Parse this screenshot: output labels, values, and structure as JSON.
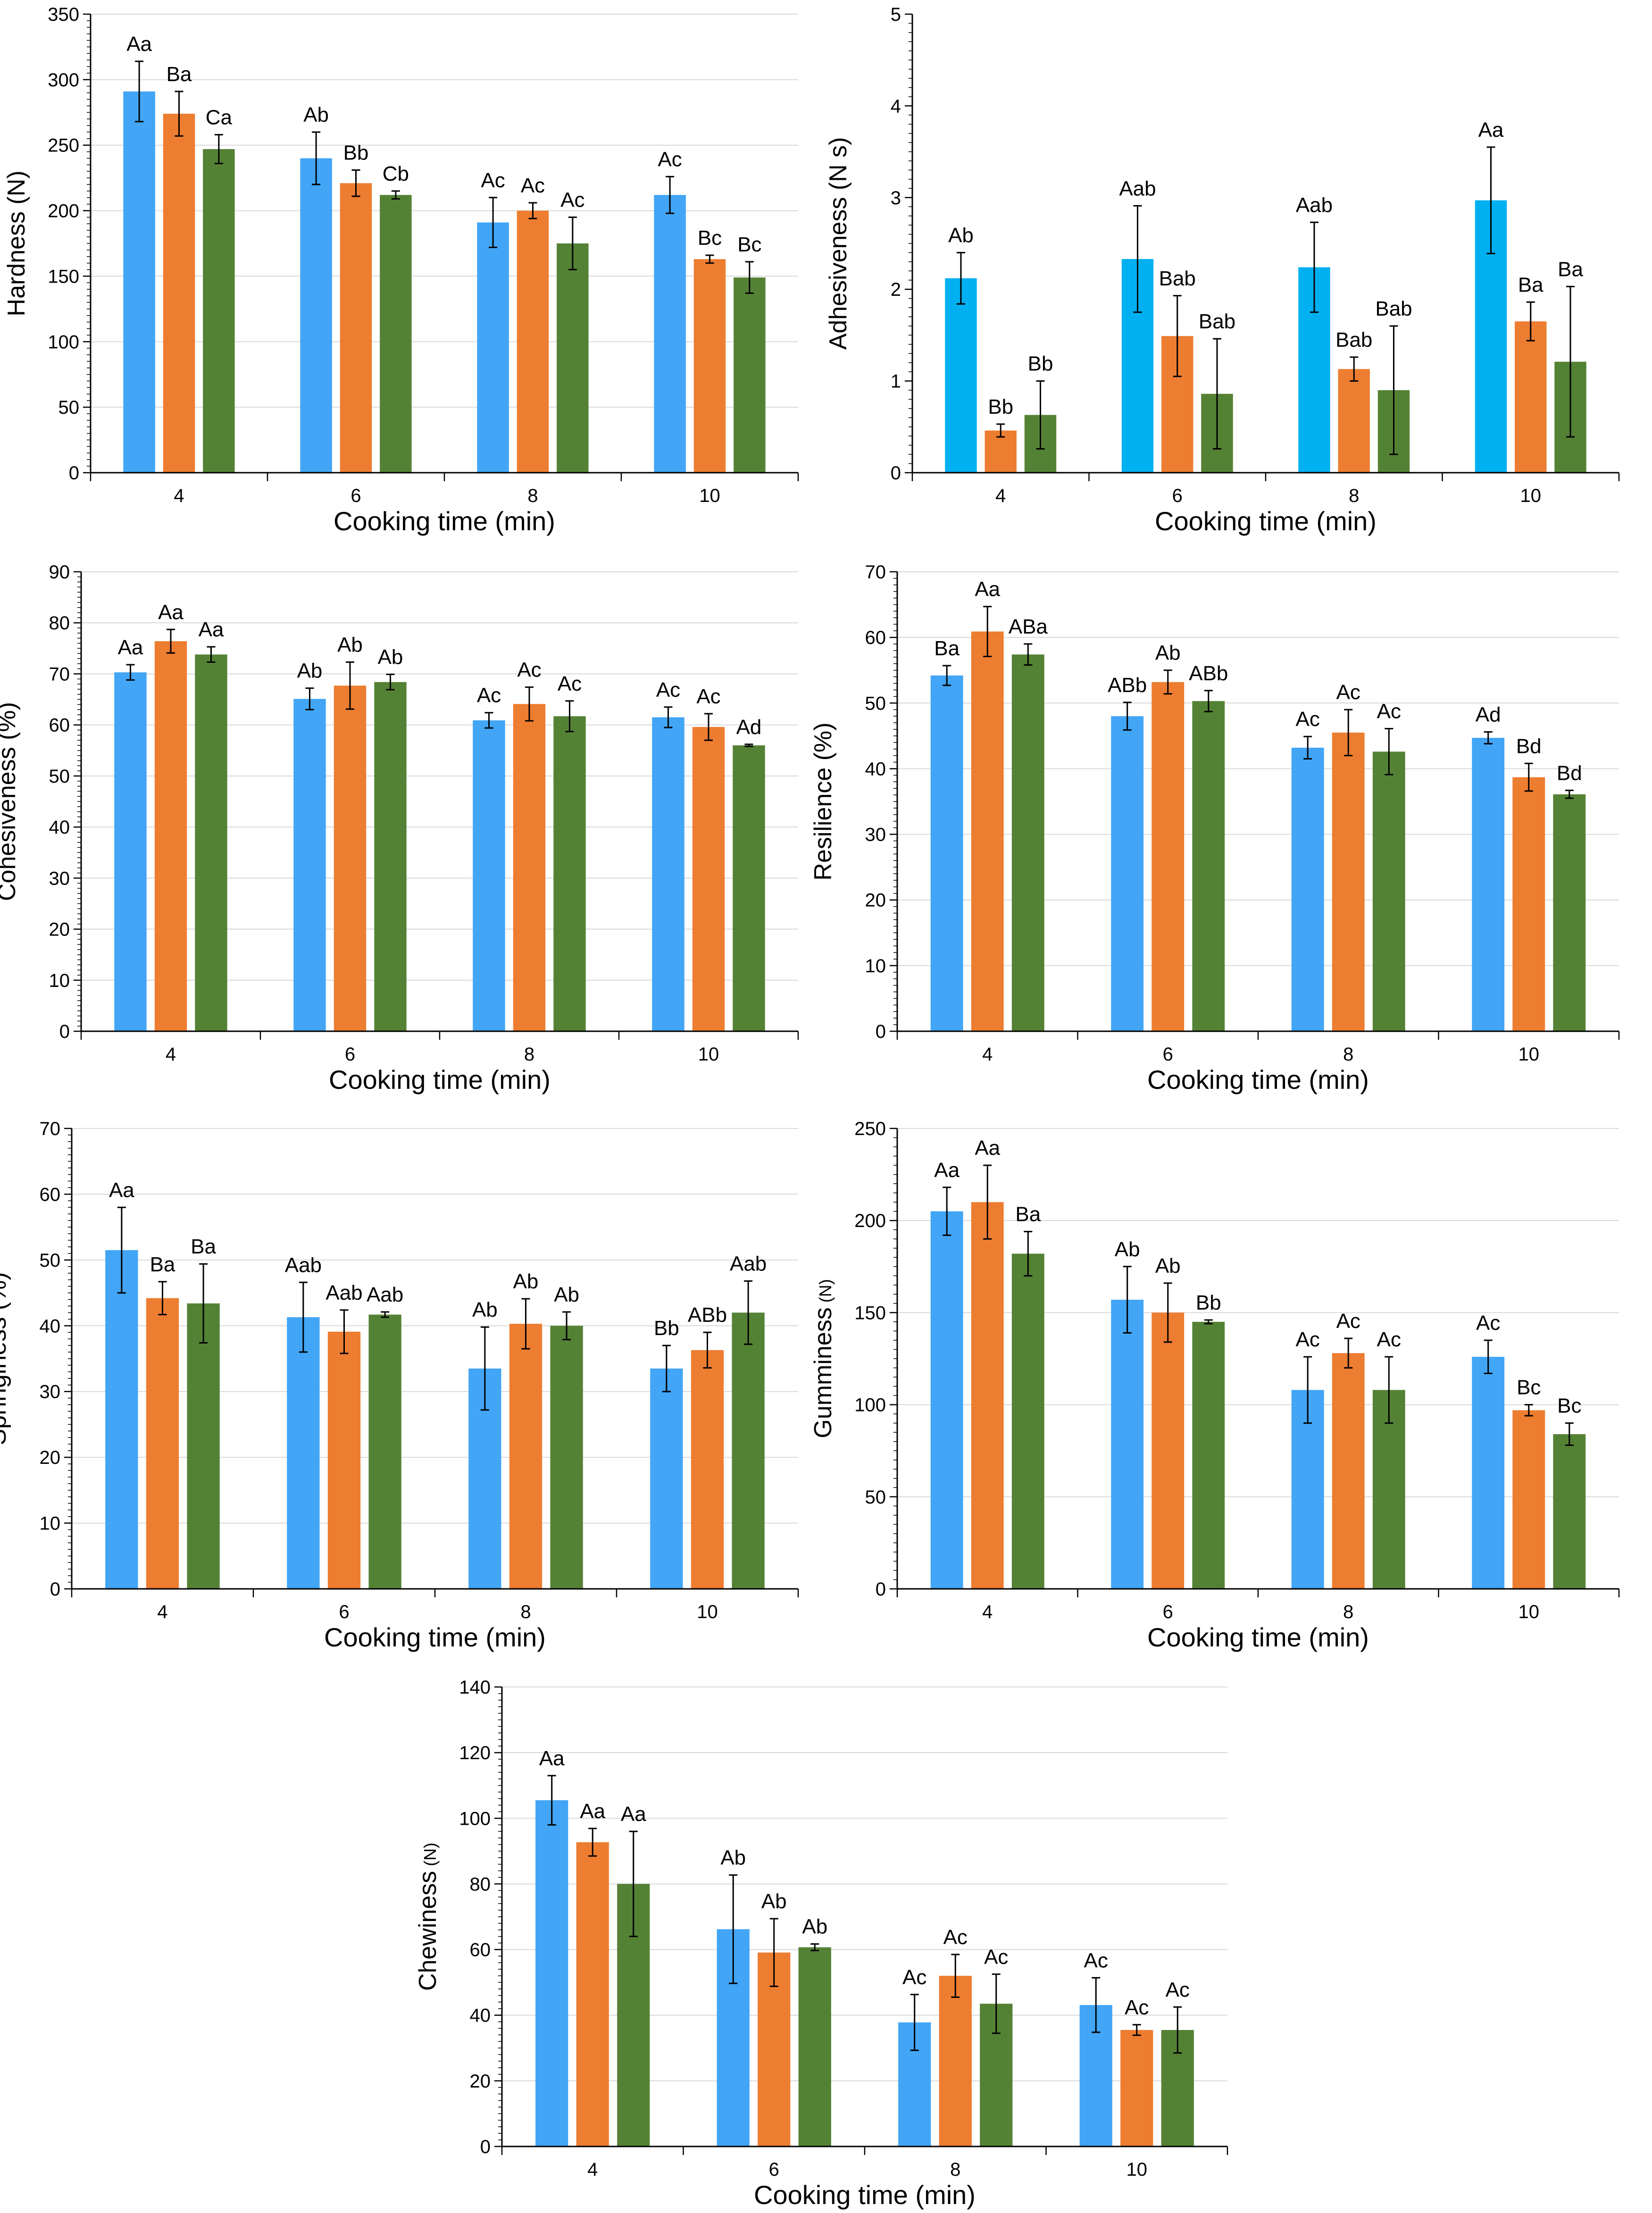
{
  "figure": {
    "series_colors": {
      "series_1_blue": "#42a5f5",
      "series_2_orange": "#ed7d31",
      "series_3_green": "#548235",
      "adhesiveness_blue": "#00b0f0"
    },
    "grid_color": "#d9d9d9"
  },
  "chart_data": [
    {
      "id": "hardness",
      "type": "bar",
      "ylabel": "Hardness (N)",
      "xlabel": "Cooking time (min)",
      "categories": [
        "4",
        "6",
        "8",
        "10"
      ],
      "ylim": [
        0,
        350
      ],
      "ystep": 50,
      "ytick_labels": [
        "0",
        "50",
        "100",
        "150",
        "200",
        "250",
        "300",
        "350"
      ],
      "grid": true,
      "series": [
        {
          "color": "#42a5f5",
          "values": [
            291,
            240,
            191,
            212
          ],
          "errors": [
            23,
            20,
            19,
            14
          ],
          "labels": [
            "Aa",
            "Ab",
            "Ac",
            "Ac"
          ]
        },
        {
          "color": "#ed7d31",
          "values": [
            274,
            221,
            200,
            163
          ],
          "errors": [
            17,
            10,
            6,
            3
          ],
          "labels": [
            "Ba",
            "Bb",
            "Ac",
            "Bc"
          ]
        },
        {
          "color": "#548235",
          "values": [
            247,
            212,
            175,
            149
          ],
          "errors": [
            11,
            3,
            20,
            12
          ],
          "labels": [
            "Ca",
            "Cb",
            "Ac",
            "Bc"
          ]
        }
      ]
    },
    {
      "id": "adhesiveness",
      "type": "bar",
      "ylabel": "Adhesiveness (N s)",
      "xlabel": "Cooking time (min)",
      "categories": [
        "4",
        "6",
        "8",
        "10"
      ],
      "ylim": [
        0,
        5
      ],
      "ystep": 1,
      "ytick_labels": [
        "0",
        "1",
        "2",
        "3",
        "4",
        "5"
      ],
      "grid": false,
      "series": [
        {
          "color": "#00b0f0",
          "values": [
            2.12,
            2.33,
            2.24,
            2.97
          ],
          "errors": [
            0.28,
            0.58,
            0.49,
            0.58
          ],
          "labels": [
            "Ab",
            "Aab",
            "Aab",
            "Aa"
          ]
        },
        {
          "color": "#ed7d31",
          "values": [
            0.46,
            1.49,
            1.13,
            1.65
          ],
          "errors": [
            0.07,
            0.44,
            0.13,
            0.21
          ],
          "labels": [
            "Bb",
            "Bab",
            "Bab",
            "Ba"
          ]
        },
        {
          "color": "#548235",
          "values": [
            0.63,
            0.86,
            0.9,
            1.21
          ],
          "errors": [
            0.37,
            0.6,
            0.7,
            0.82
          ],
          "labels": [
            "Bb",
            "Bab",
            "Bab",
            "Ba"
          ]
        }
      ]
    },
    {
      "id": "cohesiveness",
      "type": "bar",
      "ylabel": "Cohesiveness (%)",
      "xlabel": "Cooking time (min)",
      "categories": [
        "4",
        "6",
        "8",
        "10"
      ],
      "ylim": [
        0,
        90
      ],
      "ystep": 10,
      "ytick_labels": [
        "0",
        "10",
        "20",
        "30",
        "40",
        "50",
        "60",
        "70",
        "80",
        "90"
      ],
      "grid": true,
      "series": [
        {
          "color": "#42a5f5",
          "values": [
            70.3,
            65.1,
            60.9,
            61.5
          ],
          "errors": [
            1.5,
            2.1,
            1.5,
            2.0
          ],
          "labels": [
            "Aa",
            "Ab",
            "Ac",
            "Ac"
          ]
        },
        {
          "color": "#ed7d31",
          "values": [
            76.4,
            67.7,
            64.1,
            59.6
          ],
          "errors": [
            2.3,
            4.6,
            3.3,
            2.6
          ],
          "labels": [
            "Aa",
            "Ab",
            "Ac",
            "Ac"
          ]
        },
        {
          "color": "#548235",
          "values": [
            73.8,
            68.4,
            61.7,
            56.0
          ],
          "errors": [
            1.5,
            1.5,
            3.0,
            0.2
          ],
          "labels": [
            "Aa",
            "Ab",
            "Ac",
            "Ad"
          ]
        }
      ]
    },
    {
      "id": "resilience",
      "type": "bar",
      "ylabel": "Resilience (%)",
      "xlabel": "Cooking time (min)",
      "categories": [
        "4",
        "6",
        "8",
        "10"
      ],
      "ylim": [
        0,
        70
      ],
      "ystep": 10,
      "ytick_labels": [
        "0",
        "10",
        "20",
        "30",
        "40",
        "50",
        "60",
        "70"
      ],
      "grid": true,
      "series": [
        {
          "color": "#42a5f5",
          "values": [
            54.2,
            48.0,
            43.2,
            44.7
          ],
          "errors": [
            1.5,
            2.1,
            1.7,
            0.9
          ],
          "labels": [
            "Ba",
            "ABb",
            "Ac",
            "Ad"
          ]
        },
        {
          "color": "#ed7d31",
          "values": [
            60.9,
            53.2,
            45.5,
            38.7
          ],
          "errors": [
            3.8,
            1.8,
            3.5,
            2.1
          ],
          "labels": [
            "Aa",
            "Ab",
            "Ac",
            "Bd"
          ]
        },
        {
          "color": "#548235",
          "values": [
            57.4,
            50.3,
            42.6,
            36.1
          ],
          "errors": [
            1.6,
            1.6,
            3.5,
            0.6
          ],
          "labels": [
            "ABa",
            "ABb",
            "Ac",
            "Bd"
          ]
        }
      ]
    },
    {
      "id": "springiness",
      "type": "bar",
      "ylabel": "Springiness (%)",
      "xlabel": "Cooking time (min)",
      "categories": [
        "4",
        "6",
        "8",
        "10"
      ],
      "ylim": [
        0,
        70
      ],
      "ystep": 10,
      "ytick_labels": [
        "0",
        "10",
        "20",
        "30",
        "40",
        "50",
        "60",
        "70"
      ],
      "grid": true,
      "series": [
        {
          "color": "#42a5f5",
          "values": [
            51.5,
            41.3,
            33.5,
            33.5
          ],
          "errors": [
            6.5,
            5.3,
            6.3,
            3.5
          ],
          "labels": [
            "Aa",
            "Aab",
            "Ab",
            "Bb"
          ]
        },
        {
          "color": "#ed7d31",
          "values": [
            44.2,
            39.1,
            40.3,
            36.3
          ],
          "errors": [
            2.5,
            3.3,
            3.8,
            2.7
          ],
          "labels": [
            "Ba",
            "Aab",
            "Ab",
            "ABb"
          ]
        },
        {
          "color": "#548235",
          "values": [
            43.4,
            41.7,
            40.0,
            42.0
          ],
          "errors": [
            6.0,
            0.4,
            2.1,
            4.8
          ],
          "labels": [
            "Ba",
            "Aab",
            "Ab",
            "Aab"
          ]
        }
      ]
    },
    {
      "id": "gumminess",
      "type": "bar",
      "ylabel": "Gumminess",
      "ylabel_unit": "(N)",
      "xlabel": "Cooking time (min)",
      "categories": [
        "4",
        "6",
        "8",
        "10"
      ],
      "ylim": [
        0,
        250
      ],
      "ystep": 50,
      "ytick_labels": [
        "0",
        "50",
        "100",
        "150",
        "200",
        "250"
      ],
      "grid": true,
      "series": [
        {
          "color": "#42a5f5",
          "values": [
            205,
            157,
            108,
            126
          ],
          "errors": [
            13,
            18,
            18,
            9
          ],
          "labels": [
            "Aa",
            "Ab",
            "Ac",
            "Ac"
          ]
        },
        {
          "color": "#ed7d31",
          "values": [
            210,
            150,
            128,
            97
          ],
          "errors": [
            20,
            16,
            8,
            3
          ],
          "labels": [
            "Aa",
            "Ab",
            "Ac",
            "Bc"
          ]
        },
        {
          "color": "#548235",
          "values": [
            182,
            145,
            108,
            84
          ],
          "errors": [
            12,
            1,
            18,
            6
          ],
          "labels": [
            "Ba",
            "Bb",
            "Ac",
            "Bc"
          ]
        }
      ]
    },
    {
      "id": "chewiness",
      "type": "bar",
      "ylabel": "Chewiness",
      "ylabel_unit": "(N)",
      "xlabel": "Cooking time (min)",
      "categories": [
        "4",
        "6",
        "8",
        "10"
      ],
      "ylim": [
        0,
        140
      ],
      "ystep": 20,
      "ytick_labels": [
        "0",
        "20",
        "40",
        "60",
        "80",
        "100",
        "120",
        "140"
      ],
      "grid": true,
      "series": [
        {
          "color": "#42a5f5",
          "values": [
            105.5,
            66.2,
            37.8,
            43.1
          ],
          "errors": [
            7.5,
            16.5,
            8.5,
            8.3
          ],
          "labels": [
            "Aa",
            "Ab",
            "Ac",
            "Ac"
          ]
        },
        {
          "color": "#ed7d31",
          "values": [
            92.7,
            59.1,
            52.0,
            35.5
          ],
          "errors": [
            4.2,
            10.3,
            6.5,
            1.6
          ],
          "labels": [
            "Aa",
            "Ab",
            "Ac",
            "Ac"
          ]
        },
        {
          "color": "#548235",
          "values": [
            80.0,
            60.7,
            43.5,
            35.5
          ],
          "errors": [
            16.0,
            1.0,
            9.0,
            7.0
          ],
          "labels": [
            "Aa",
            "Ab",
            "Ac",
            "Ac"
          ]
        }
      ]
    }
  ]
}
